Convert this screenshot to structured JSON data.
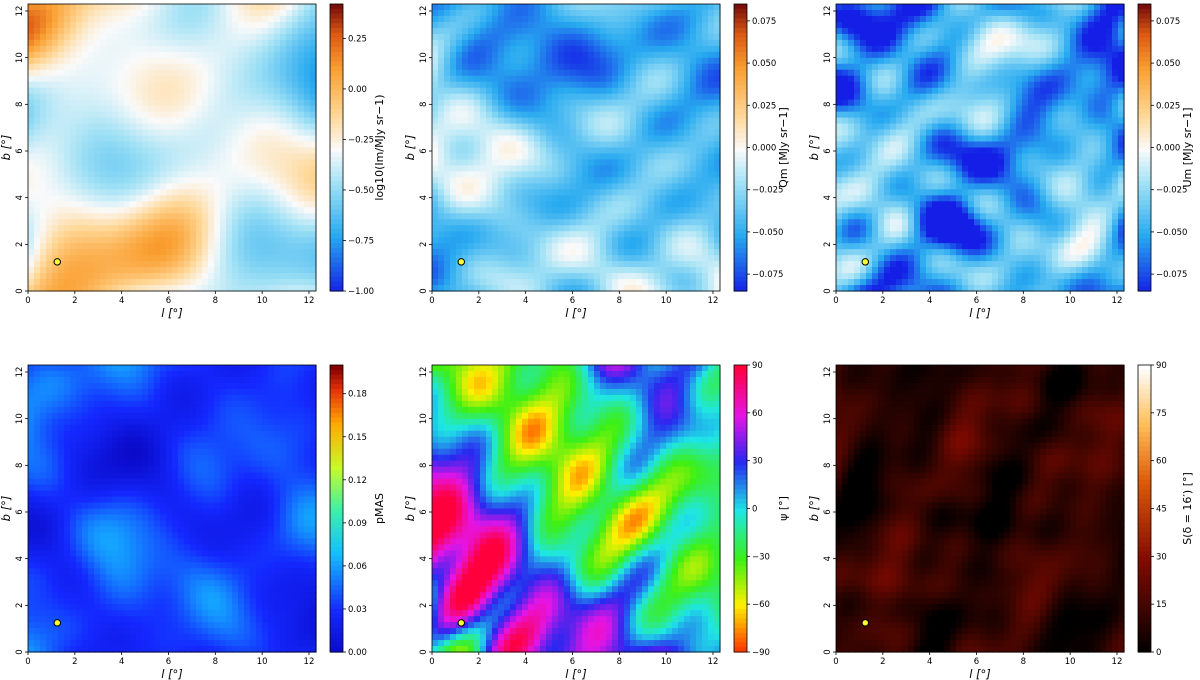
{
  "chart_data": [
    {
      "type": "heatmap",
      "xlabel": "l [°]",
      "ylabel": "b [°]",
      "xlim": [
        0,
        12.3
      ],
      "ylim": [
        0,
        12.3
      ],
      "xticks": [
        "0",
        "2",
        "4",
        "6",
        "8",
        "10",
        "12"
      ],
      "yticks": [
        "0",
        "2",
        "4",
        "6",
        "8",
        "10",
        "12"
      ],
      "colorbar": {
        "label": "log10(Im/MJy sr−1)",
        "range": [
          -1.0,
          0.42
        ],
        "ticks": [
          "0.25",
          "0.00",
          "−0.25",
          "−0.50",
          "−0.75",
          "−1.00"
        ],
        "tick_values": [
          0.25,
          0.0,
          -0.25,
          -0.5,
          -0.75,
          -1.0
        ],
        "colormap": "blue-white-orange-darkred"
      },
      "marker": {
        "l": 1.25,
        "b": 1.25
      },
      "field": {
        "seed": 11,
        "base": 0.45,
        "amp": 0.32,
        "scale": 1.0
      }
    },
    {
      "type": "heatmap",
      "xlabel": "l [°]",
      "ylabel": "b [°]",
      "xlim": [
        0,
        12.3
      ],
      "ylim": [
        0,
        12.3
      ],
      "xticks": [
        "0",
        "2",
        "4",
        "6",
        "8",
        "10",
        "12"
      ],
      "yticks": [
        "0",
        "2",
        "4",
        "6",
        "8",
        "10",
        "12"
      ],
      "colorbar": {
        "label": "Qm [MJy sr−1]",
        "range": [
          -0.085,
          0.085
        ],
        "ticks": [
          "0.075",
          "0.050",
          "0.025",
          "0.000",
          "−0.025",
          "−0.050",
          "−0.075"
        ],
        "tick_values": [
          0.075,
          0.05,
          0.025,
          0.0,
          -0.025,
          -0.05,
          -0.075
        ],
        "colormap": "blue-white-orange-darkred"
      },
      "marker": {
        "l": 1.25,
        "b": 1.25
      },
      "field": {
        "seed": 23,
        "base": 0.28,
        "amp": 0.28,
        "scale": 1.6
      }
    },
    {
      "type": "heatmap",
      "xlabel": "l [°]",
      "ylabel": "b [°]",
      "xlim": [
        0,
        12.3
      ],
      "ylim": [
        0,
        12.3
      ],
      "xticks": [
        "0",
        "2",
        "4",
        "6",
        "8",
        "10",
        "12"
      ],
      "yticks": [
        "0",
        "2",
        "4",
        "6",
        "8",
        "10",
        "12"
      ],
      "colorbar": {
        "label": "Um [MJy sr−1]",
        "range": [
          -0.085,
          0.085
        ],
        "ticks": [
          "0.075",
          "0.050",
          "0.025",
          "0.000",
          "−0.025",
          "−0.050",
          "−0.075"
        ],
        "tick_values": [
          0.075,
          0.05,
          0.025,
          0.0,
          -0.025,
          -0.05,
          -0.075
        ],
        "colormap": "blue-white-orange-darkred"
      },
      "marker": {
        "l": 1.25,
        "b": 1.25
      },
      "field": {
        "seed": 37,
        "base": 0.22,
        "amp": 0.3,
        "scale": 1.6
      }
    },
    {
      "type": "heatmap",
      "xlabel": "l [°]",
      "ylabel": "b [°]",
      "xlim": [
        0,
        12.3
      ],
      "ylim": [
        0,
        12.3
      ],
      "xticks": [
        "0",
        "2",
        "4",
        "6",
        "8",
        "10",
        "12"
      ],
      "yticks": [
        "0",
        "2",
        "4",
        "6",
        "8",
        "10",
        "12"
      ],
      "colorbar": {
        "label": "pMAS",
        "range": [
          0.0,
          0.2
        ],
        "ticks": [
          "0.18",
          "0.15",
          "0.12",
          "0.09",
          "0.06",
          "0.03",
          "0.00"
        ],
        "tick_values": [
          0.18,
          0.15,
          0.12,
          0.09,
          0.06,
          0.03,
          0.0
        ],
        "colormap": "jet"
      },
      "marker": {
        "l": 1.25,
        "b": 1.25
      },
      "field": {
        "seed": 51,
        "base": 0.17,
        "amp": 0.13,
        "scale": 1.9
      }
    },
    {
      "type": "heatmap",
      "xlabel": "l [°]",
      "ylabel": "b [°]",
      "xlim": [
        0,
        12.3
      ],
      "ylim": [
        0,
        12.3
      ],
      "xticks": [
        "0",
        "2",
        "4",
        "6",
        "8",
        "10",
        "12"
      ],
      "yticks": [
        "0",
        "2",
        "4",
        "6",
        "8",
        "10",
        "12"
      ],
      "colorbar": {
        "label": "ψ [°]",
        "range": [
          -90,
          90
        ],
        "ticks": [
          "90",
          "60",
          "30",
          "0",
          "−30",
          "−60",
          "−90"
        ],
        "tick_values": [
          90,
          60,
          30,
          0,
          -30,
          -60,
          -90
        ],
        "colormap": "hsv"
      },
      "marker": {
        "l": 1.25,
        "b": 1.25
      },
      "field": {
        "seed": 67,
        "base": 0.55,
        "amp": 0.45,
        "scale": 1.4
      }
    },
    {
      "type": "heatmap",
      "xlabel": "l [°]",
      "ylabel": "b [°]",
      "xlim": [
        0,
        12.3
      ],
      "ylim": [
        0,
        12.3
      ],
      "xticks": [
        "0",
        "2",
        "4",
        "6",
        "8",
        "10",
        "12"
      ],
      "yticks": [
        "0",
        "2",
        "4",
        "6",
        "8",
        "10",
        "12"
      ],
      "colorbar": {
        "label": "S(δ = 16′) [°]",
        "range": [
          0,
          90
        ],
        "ticks": [
          "90",
          "75",
          "60",
          "45",
          "30",
          "15",
          "0"
        ],
        "tick_values": [
          90,
          75,
          60,
          45,
          30,
          15,
          0
        ],
        "colormap": "gist_heat"
      },
      "marker": {
        "l": 1.25,
        "b": 1.25
      },
      "field": {
        "seed": 83,
        "base": 0.12,
        "amp": 0.14,
        "scale": 2.6
      }
    }
  ]
}
